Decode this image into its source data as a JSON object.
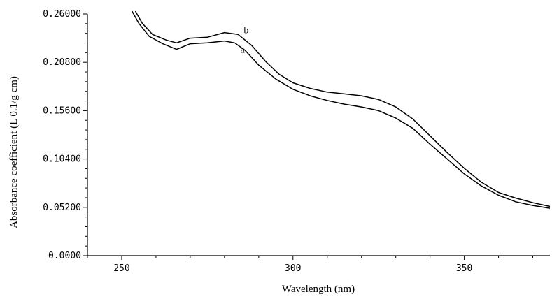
{
  "chart_data": {
    "type": "line",
    "title": "",
    "xlabel": "Wavelength (nm)",
    "ylabel": "Absorbance  coefficient (L 0.1/g cm)",
    "xlim": [
      240,
      375
    ],
    "ylim": [
      0,
      0.26
    ],
    "xticks": [
      250,
      300,
      350
    ],
    "yticks": [
      0.0,
      0.052,
      0.104,
      0.156,
      0.208,
      0.26
    ],
    "yticklabels": [
      "0.0000",
      "0.05200",
      "0.10400",
      "0.15600",
      "0.20800",
      "0.26000"
    ],
    "grid": false,
    "series": [
      {
        "name": "a",
        "x": [
          253,
          255,
          258,
          262,
          266,
          270,
          275,
          280,
          283,
          286,
          290,
          295,
          300,
          305,
          310,
          315,
          320,
          325,
          330,
          335,
          340,
          345,
          350,
          355,
          360,
          365,
          370,
          375
        ],
        "y": [
          0.263,
          0.25,
          0.236,
          0.228,
          0.222,
          0.228,
          0.229,
          0.231,
          0.229,
          0.221,
          0.205,
          0.19,
          0.179,
          0.172,
          0.167,
          0.163,
          0.16,
          0.156,
          0.148,
          0.137,
          0.12,
          0.104,
          0.088,
          0.075,
          0.065,
          0.058,
          0.054,
          0.051
        ]
      },
      {
        "name": "b",
        "x": [
          254,
          256,
          259,
          263,
          266,
          270,
          275,
          280,
          284,
          288,
          292,
          296,
          300,
          305,
          310,
          315,
          320,
          325,
          330,
          335,
          340,
          345,
          350,
          355,
          360,
          365,
          370,
          375
        ],
        "y": [
          0.263,
          0.25,
          0.238,
          0.232,
          0.229,
          0.234,
          0.235,
          0.24,
          0.238,
          0.226,
          0.209,
          0.195,
          0.186,
          0.18,
          0.176,
          0.174,
          0.172,
          0.168,
          0.16,
          0.147,
          0.129,
          0.111,
          0.094,
          0.079,
          0.068,
          0.062,
          0.057,
          0.053
        ]
      }
    ]
  }
}
